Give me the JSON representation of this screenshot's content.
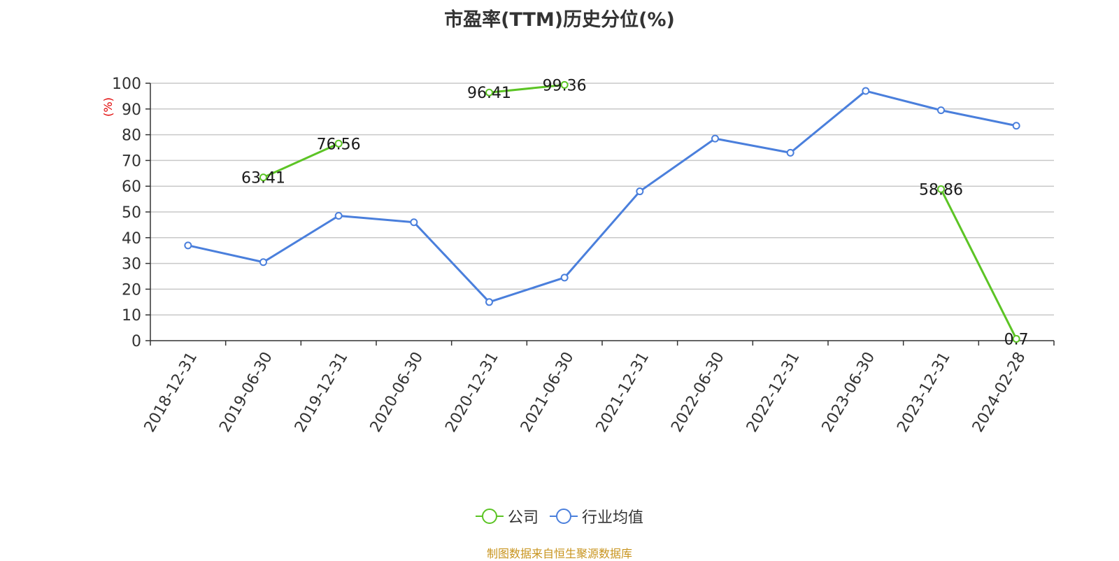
{
  "title": "市盈率(TTM)历史分位(%)",
  "source_note": "制图数据来自恒生聚源数据库",
  "colors": {
    "company": "#5cc425",
    "industry": "#4a7fdc",
    "unit_label": "#e00000",
    "grid": "#c8c8c8",
    "axis": "#333333"
  },
  "chart_data": {
    "type": "line",
    "title": "市盈率(TTM)历史分位(%)",
    "ylabel": "(%)",
    "xlabel": "",
    "ylim": [
      0,
      100
    ],
    "yticks": [
      0,
      10,
      20,
      30,
      40,
      50,
      60,
      70,
      80,
      90,
      100
    ],
    "grid": true,
    "legend_position": "bottom-center",
    "categories": [
      "2018-12-31",
      "2019-06-30",
      "2019-12-31",
      "2020-06-30",
      "2020-12-31",
      "2021-06-30",
      "2021-12-31",
      "2022-06-30",
      "2022-12-31",
      "2023-06-30",
      "2023-12-31",
      "2024-02-28"
    ],
    "series": [
      {
        "name": "公司",
        "color": "#5cc425",
        "values": [
          null,
          63.41,
          76.56,
          null,
          96.41,
          99.36,
          null,
          null,
          null,
          null,
          58.86,
          0.7
        ],
        "labels": [
          "",
          "63.41",
          "76.56",
          "",
          "96.41",
          "99.36",
          "",
          "",
          "",
          "",
          "58.86",
          "0.7"
        ]
      },
      {
        "name": "行业均值",
        "color": "#4a7fdc",
        "values": [
          37,
          30.5,
          48.5,
          46,
          15,
          24.5,
          58,
          78.5,
          73,
          97,
          89.5,
          83.5
        ]
      }
    ]
  }
}
